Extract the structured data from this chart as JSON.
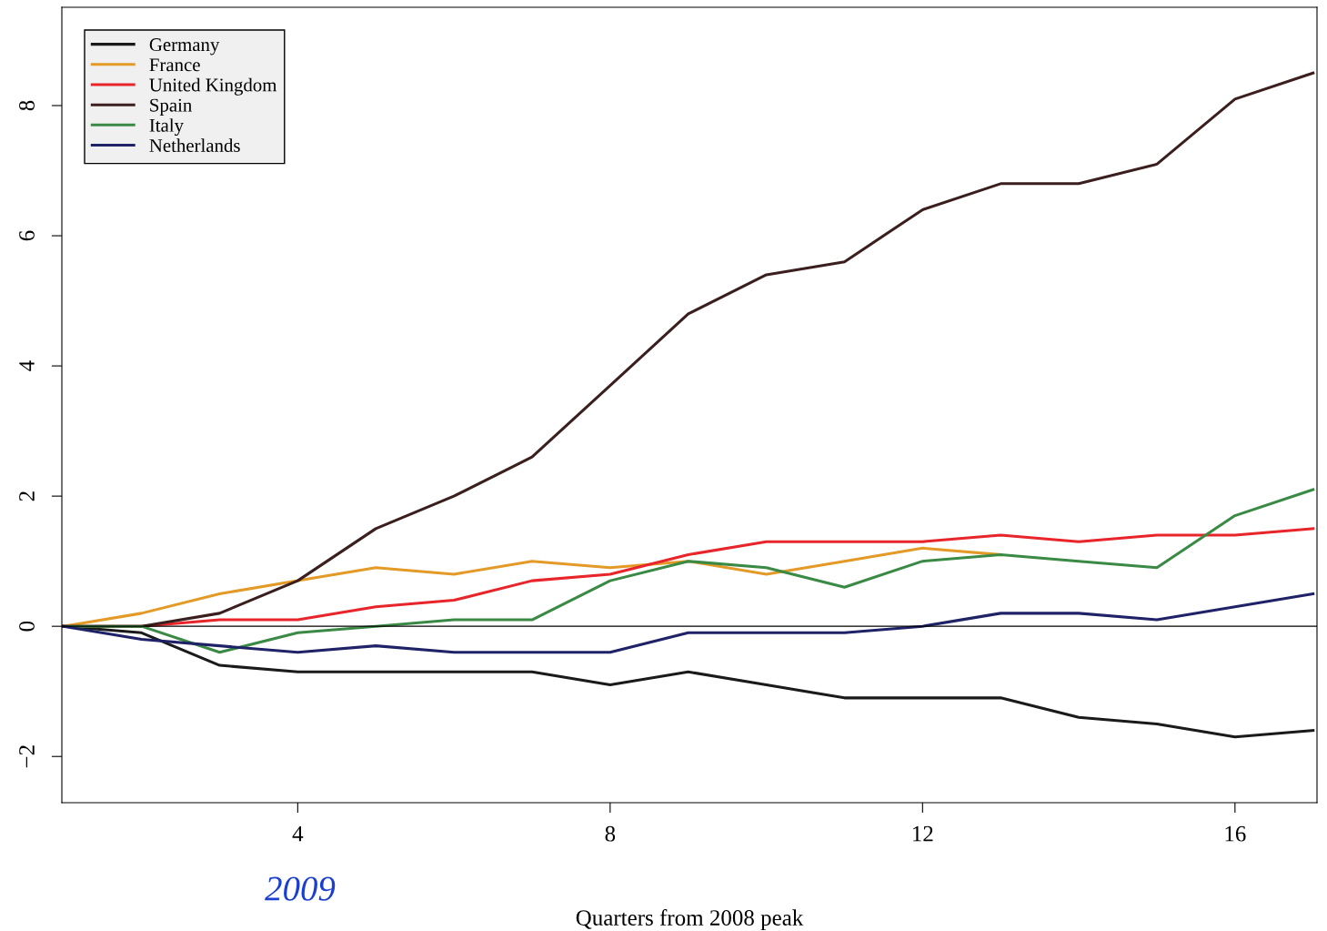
{
  "chart_data": {
    "type": "line",
    "xlabel": "Quarters from 2008 peak",
    "x": [
      1,
      2,
      3,
      4,
      5,
      6,
      7,
      8,
      9,
      10,
      11,
      12,
      13,
      14,
      15,
      16,
      17
    ],
    "series": [
      {
        "name": "Germany",
        "color": "#1a1a1a",
        "values": [
          0,
          -0.1,
          -0.6,
          -0.7,
          -0.7,
          -0.7,
          -0.7,
          -0.9,
          -0.7,
          -0.9,
          -1.1,
          -1.1,
          -1.1,
          -1.4,
          -1.5,
          -1.7,
          -1.6
        ]
      },
      {
        "name": "France",
        "color": "#e39a27",
        "values": [
          0,
          0.2,
          0.5,
          0.7,
          0.9,
          0.8,
          1.0,
          0.9,
          1.0,
          0.8,
          1.0,
          1.2,
          1.1,
          null,
          null,
          null,
          null
        ]
      },
      {
        "name": "United Kingdom",
        "color": "#e8252a",
        "values": [
          0,
          0,
          0.1,
          0.1,
          0.3,
          0.4,
          0.7,
          0.8,
          1.1,
          1.3,
          1.3,
          1.3,
          1.4,
          1.3,
          1.4,
          1.4,
          1.5
        ]
      },
      {
        "name": "Spain",
        "color": "#3b1f1f",
        "values": [
          0,
          0,
          0.2,
          0.7,
          1.5,
          2.0,
          2.6,
          3.7,
          4.8,
          5.4,
          5.6,
          6.4,
          6.8,
          6.8,
          7.1,
          8.1,
          8.5
        ]
      },
      {
        "name": "Italy",
        "color": "#3a8a45",
        "values": [
          0,
          0,
          -0.4,
          -0.1,
          0,
          0.1,
          0.1,
          0.7,
          1.0,
          0.9,
          0.6,
          1.0,
          1.1,
          1.0,
          0.9,
          1.7,
          2.1
        ]
      },
      {
        "name": "Netherlands",
        "color": "#1f2266",
        "values": [
          0,
          -0.2,
          -0.3,
          -0.4,
          -0.3,
          -0.4,
          -0.4,
          -0.4,
          -0.1,
          -0.1,
          -0.1,
          0,
          0.2,
          0.2,
          0.1,
          0.3,
          0.5
        ]
      }
    ],
    "xlim": [
      0.98,
      17.05
    ],
    "xticks": [
      4,
      8,
      12,
      16
    ],
    "ylim": [
      -2.71,
      9.51
    ],
    "yticks": [
      -2,
      0,
      2,
      4,
      6,
      8
    ],
    "ref_lines": [
      {
        "axis": "y",
        "value": 0,
        "color": "#000000"
      }
    ],
    "annotations": [
      "2009"
    ],
    "legend": "top left",
    "grid": false,
    "marker": "none",
    "line_style": "solid"
  }
}
